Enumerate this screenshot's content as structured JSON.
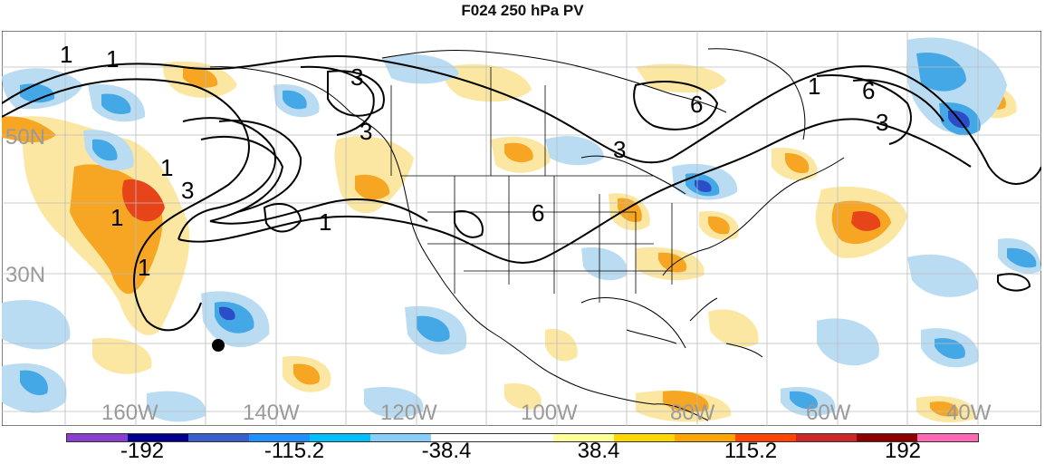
{
  "title": "F024 250 hPa PV",
  "lat_labels": [
    "50N",
    "30N"
  ],
  "lon_labels": [
    "160W",
    "140W",
    "120W",
    "100W",
    "80W",
    "60W",
    "40W"
  ],
  "colorbar": {
    "labels": [
      "-192",
      "-115.2",
      "-38.4",
      "38.4",
      "115.2",
      "192"
    ],
    "colors": [
      "#8a3fd0",
      "#00008b",
      "#3a5fcd",
      "#1e90ff",
      "#00bfff",
      "#87cefa",
      "#ffffff",
      "#ffffff",
      "#ffff99",
      "#ffd700",
      "#ffa500",
      "#ff4500",
      "#cd2626",
      "#8b0000",
      "#ff69b4"
    ]
  },
  "contour_labels": [
    "1",
    "3",
    "6",
    "6",
    "3",
    "1",
    "3",
    "1",
    "1",
    "1",
    "3",
    "6",
    "3",
    "1",
    "1"
  ],
  "accent_colors": {
    "positive_light": "#fbe7a1",
    "positive_mid": "#f6a623",
    "positive_strong": "#e8441a",
    "negative_light": "#b9dcf3",
    "negative_mid": "#45a8e6",
    "negative_strong": "#2b4ec8"
  }
}
